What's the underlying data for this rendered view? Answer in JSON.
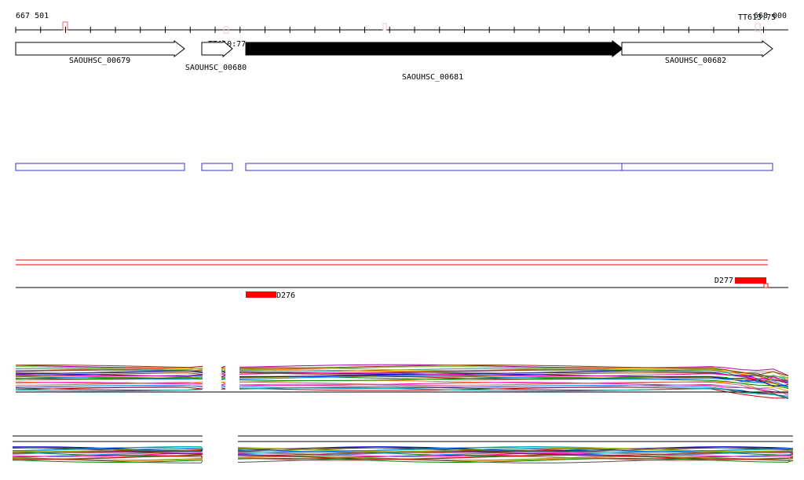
{
  "ruler": {
    "start_label": "667 501",
    "end_label": "668 000"
  },
  "markers": [
    {
      "label": "TT610:77"
    },
    {
      "label": "TT613:75"
    }
  ],
  "genes": [
    {
      "label": "SAOUHSC_00679"
    },
    {
      "label": "SAOUHSC_00680"
    },
    {
      "label": "SAOUHSC_00681"
    },
    {
      "label": "SAOUHSC_00682"
    }
  ],
  "features": [
    {
      "label": "D276"
    },
    {
      "label": "D277"
    }
  ]
}
